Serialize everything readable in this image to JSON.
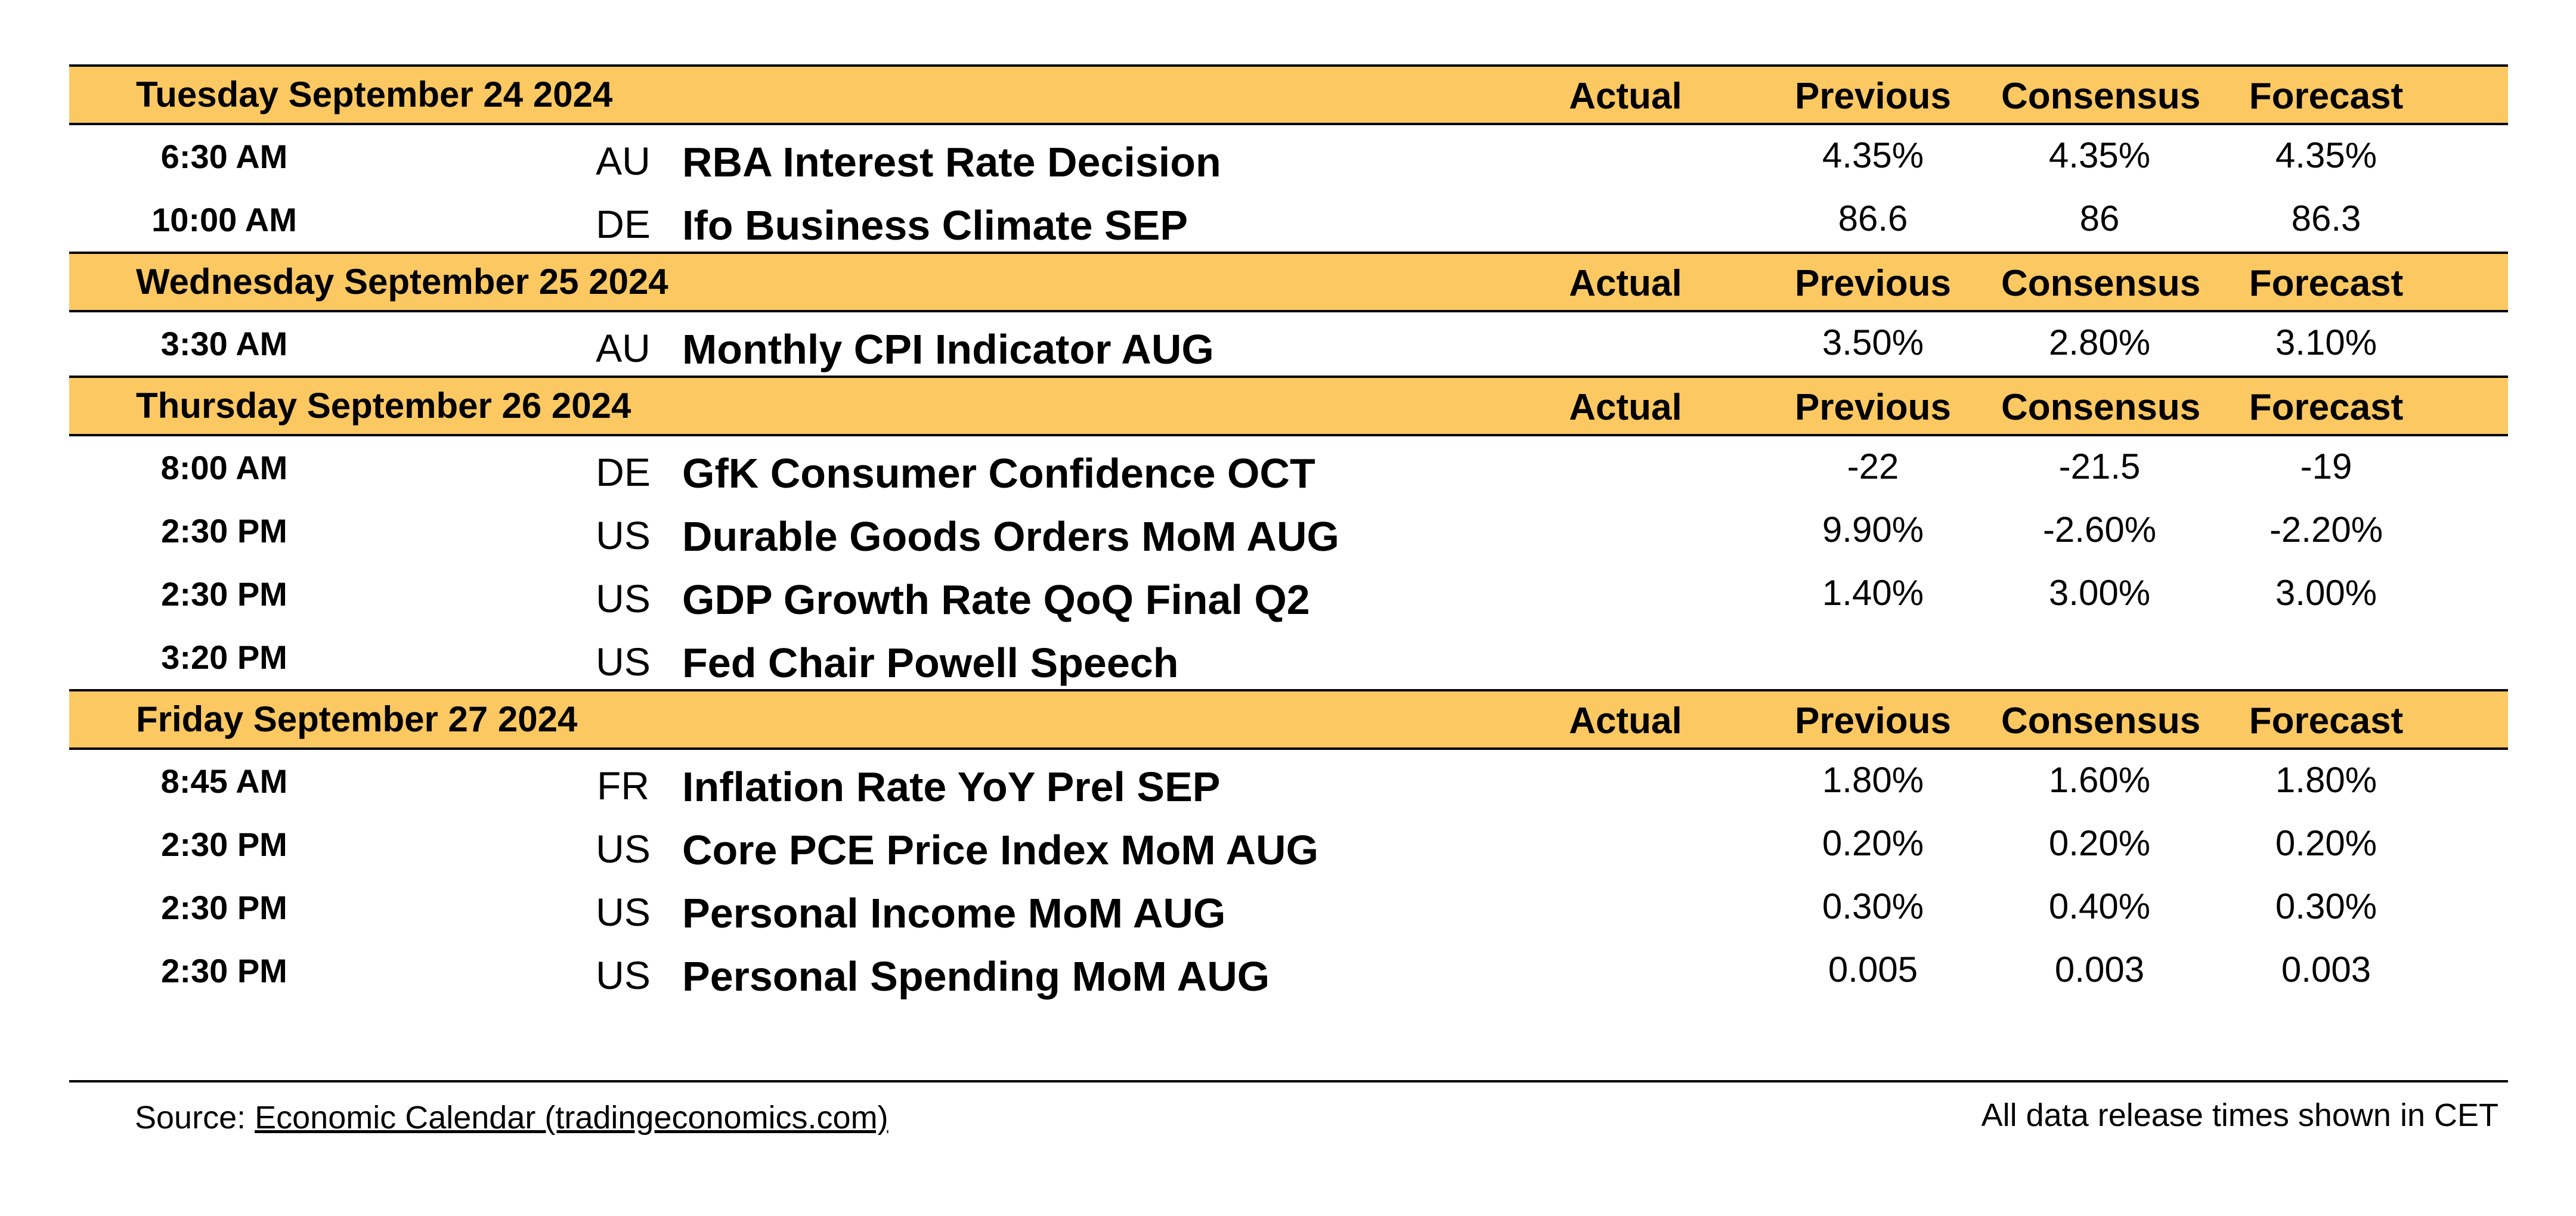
{
  "columns": {
    "actual": "Actual",
    "previous": "Previous",
    "consensus": "Consensus",
    "forecast": "Forecast"
  },
  "days": [
    {
      "title": "Tuesday September 24 2024",
      "events": [
        {
          "time": "6:30 AM",
          "country": "AU",
          "name": "RBA Interest Rate Decision",
          "actual": "",
          "previous": "4.35%",
          "consensus": "4.35%",
          "forecast": "4.35%"
        },
        {
          "time": "10:00 AM",
          "country": "DE",
          "name": "Ifo Business Climate SEP",
          "actual": "",
          "previous": "86.6",
          "consensus": "86",
          "forecast": "86.3"
        }
      ]
    },
    {
      "title": "Wednesday September 25 2024",
      "events": [
        {
          "time": "3:30 AM",
          "country": "AU",
          "name": "Monthly CPI Indicator AUG",
          "actual": "",
          "previous": "3.50%",
          "consensus": "2.80%",
          "forecast": "3.10%"
        }
      ]
    },
    {
      "title": "Thursday September 26 2024",
      "events": [
        {
          "time": "8:00 AM",
          "country": "DE",
          "name": "GfK Consumer Confidence OCT",
          "actual": "",
          "previous": "-22",
          "consensus": "-21.5",
          "forecast": "-19"
        },
        {
          "time": "2:30 PM",
          "country": "US",
          "name": "Durable Goods Orders MoM AUG",
          "actual": "",
          "previous": "9.90%",
          "consensus": "-2.60%",
          "forecast": "-2.20%"
        },
        {
          "time": "2:30 PM",
          "country": "US",
          "name": "GDP Growth Rate QoQ Final Q2",
          "actual": "",
          "previous": "1.40%",
          "consensus": "3.00%",
          "forecast": "3.00%"
        },
        {
          "time": "3:20 PM",
          "country": "US",
          "name": "Fed Chair Powell Speech",
          "actual": "",
          "previous": "",
          "consensus": "",
          "forecast": ""
        }
      ]
    },
    {
      "title": "Friday September 27 2024",
      "events": [
        {
          "time": "8:45 AM",
          "country": "FR",
          "name": "Inflation Rate YoY Prel SEP",
          "actual": "",
          "previous": "1.80%",
          "consensus": "1.60%",
          "forecast": "1.80%"
        },
        {
          "time": "2:30 PM",
          "country": "US",
          "name": "Core PCE Price Index MoM AUG",
          "actual": "",
          "previous": "0.20%",
          "consensus": "0.20%",
          "forecast": "0.20%"
        },
        {
          "time": "2:30 PM",
          "country": "US",
          "name": "Personal Income MoM AUG",
          "actual": "",
          "previous": "0.30%",
          "consensus": "0.40%",
          "forecast": "0.30%"
        },
        {
          "time": "2:30 PM",
          "country": "US",
          "name": "Personal Spending MoM AUG",
          "actual": "",
          "previous": "0.005",
          "consensus": "0.003",
          "forecast": "0.003"
        }
      ]
    }
  ],
  "footer": {
    "source_prefix": "Source: ",
    "source_link": "Economic Calendar (tradingeconomics.com)",
    "time_note": "All data release times shown in CET"
  },
  "colors": {
    "header_bg": "#FCC862"
  }
}
